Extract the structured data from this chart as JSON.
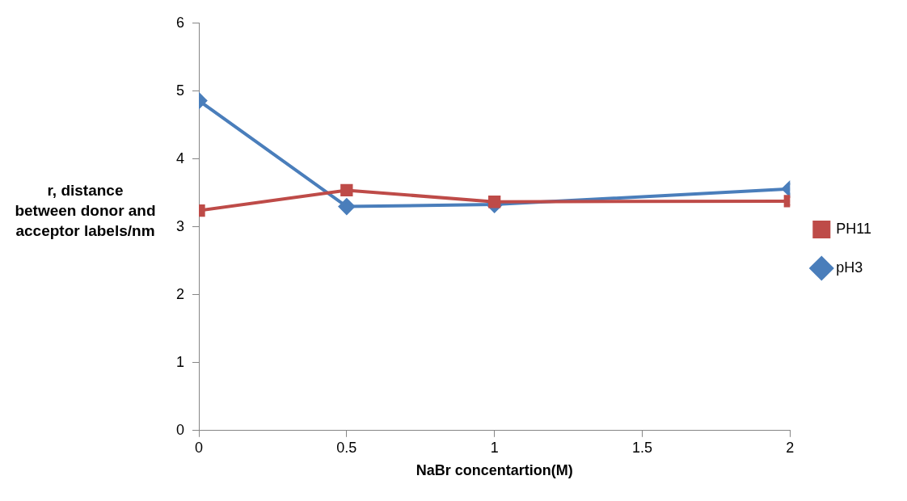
{
  "chart_data": {
    "type": "line",
    "xlabel": "NaBr concentartion(M)",
    "ylabel": "r, distance between donor and acceptor labels/nm",
    "x": [
      0,
      0.5,
      1,
      2
    ],
    "series": [
      {
        "name": "pH3",
        "color": "#4a7ebb",
        "values": [
          4.86,
          3.3,
          3.33,
          3.56
        ],
        "marker": "diamond"
      },
      {
        "name": "PH11",
        "color": "#be4b48",
        "values": [
          3.24,
          3.54,
          3.37,
          3.38
        ],
        "marker": "square"
      }
    ],
    "xlim": [
      0,
      2
    ],
    "xticks": [
      0,
      0.5,
      1,
      1.5,
      2
    ],
    "ylim": [
      0,
      6
    ],
    "yticks": [
      0,
      1,
      2,
      3,
      4,
      5,
      6
    ],
    "grid": false,
    "legend": "right",
    "line_style": "solid"
  }
}
